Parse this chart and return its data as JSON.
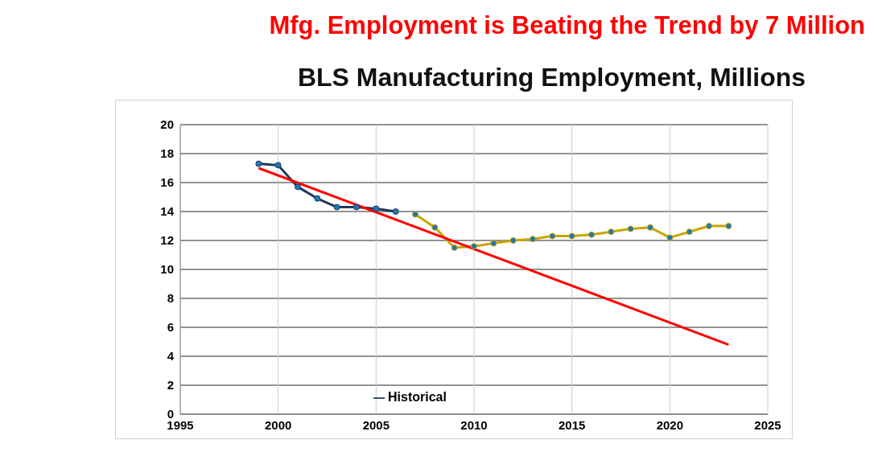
{
  "chart_data": {
    "type": "line",
    "title": "Mfg. Employment is Beating the Trend by 7 Million",
    "subtitle": "BLS Manufacturing Employment, Millions",
    "xlim": [
      1995,
      2025
    ],
    "xticks": [
      1995,
      2000,
      2005,
      2010,
      2015,
      2020,
      2025
    ],
    "ylim": [
      0,
      20
    ],
    "yticks": [
      0,
      2,
      4,
      6,
      8,
      10,
      12,
      14,
      16,
      18,
      20
    ],
    "grid": true,
    "legend": "bottom",
    "marker": "circle",
    "line_style": "solid",
    "series": [
      {
        "name": "Historical",
        "color": "#1f3a5f",
        "x": [
          1999,
          2000,
          2001,
          2002,
          2003,
          2004,
          2005,
          2006
        ],
        "values": [
          17.3,
          17.2,
          15.7,
          14.9,
          14.3,
          14.3,
          14.2,
          14.0
        ]
      },
      {
        "color": "#c9a400",
        "x": [
          2007,
          2008,
          2009,
          2010,
          2011,
          2012,
          2013,
          2014,
          2015,
          2016,
          2017,
          2018,
          2019,
          2020,
          2021,
          2022,
          2023
        ],
        "values": [
          13.8,
          12.9,
          11.5,
          11.6,
          11.8,
          12.0,
          12.1,
          12.3,
          12.3,
          12.4,
          12.6,
          12.8,
          12.9,
          12.2,
          12.6,
          13.0,
          13.0
        ]
      },
      {
        "color": "#ff0000",
        "marker": "none",
        "x": [
          1999,
          2023
        ],
        "values": [
          17.0,
          4.8
        ]
      }
    ]
  }
}
